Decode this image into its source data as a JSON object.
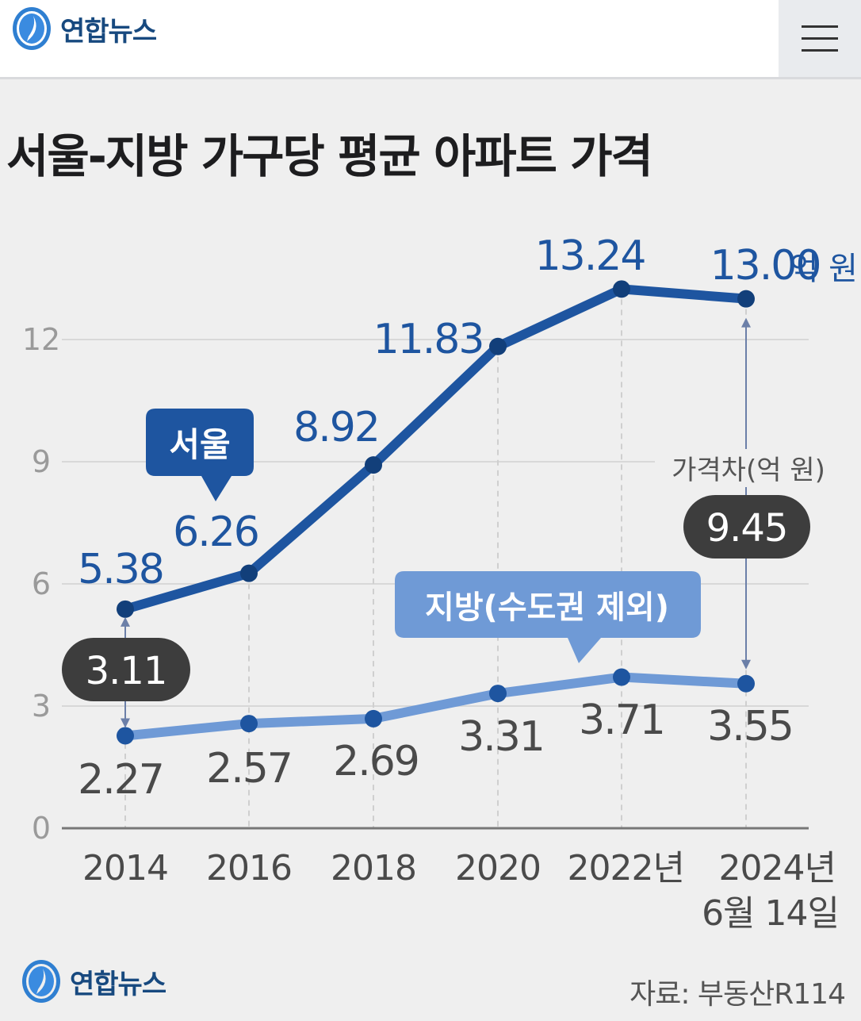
{
  "header": {
    "brand": "연합뉴스",
    "logo_icon": "yonhap-globe-logo",
    "menu_icon": "hamburger-menu-icon"
  },
  "title": "서울-지방 가구당 평균 아파트 가격",
  "footer": {
    "brand": "연합뉴스",
    "source": "자료: 부동산R114"
  },
  "colors": {
    "seoul": "#1e55a0",
    "region": "#6f9ad6",
    "gap_badge": "#3d3d3d",
    "background": "#efefef"
  },
  "chart_data": {
    "type": "line",
    "categories": [
      "2014",
      "2016",
      "2018",
      "2020",
      "2022년",
      "2024년"
    ],
    "last_category_note": "6월 14일",
    "series": [
      {
        "name": "서울",
        "values": [
          5.38,
          6.26,
          8.92,
          11.83,
          13.24,
          13.0
        ],
        "value_labels": [
          "5.38",
          "6.26",
          "8.92",
          "11.83",
          "13.24",
          "13.00"
        ]
      },
      {
        "name": "지방(수도권 제외)",
        "values": [
          2.27,
          2.57,
          2.69,
          3.31,
          3.71,
          3.55
        ],
        "value_labels": [
          "2.27",
          "2.57",
          "2.69",
          "3.31",
          "3.71",
          "3.55"
        ]
      }
    ],
    "unit": "억 원",
    "yticks": [
      "0",
      "3",
      "6",
      "9",
      "12"
    ],
    "ylim": [
      0,
      12
    ],
    "grid": true,
    "annotations": [
      {
        "label": "3.11",
        "category": "2014"
      },
      {
        "label": "9.45",
        "category": "2024년",
        "caption": "가격차(억 원)"
      }
    ]
  }
}
